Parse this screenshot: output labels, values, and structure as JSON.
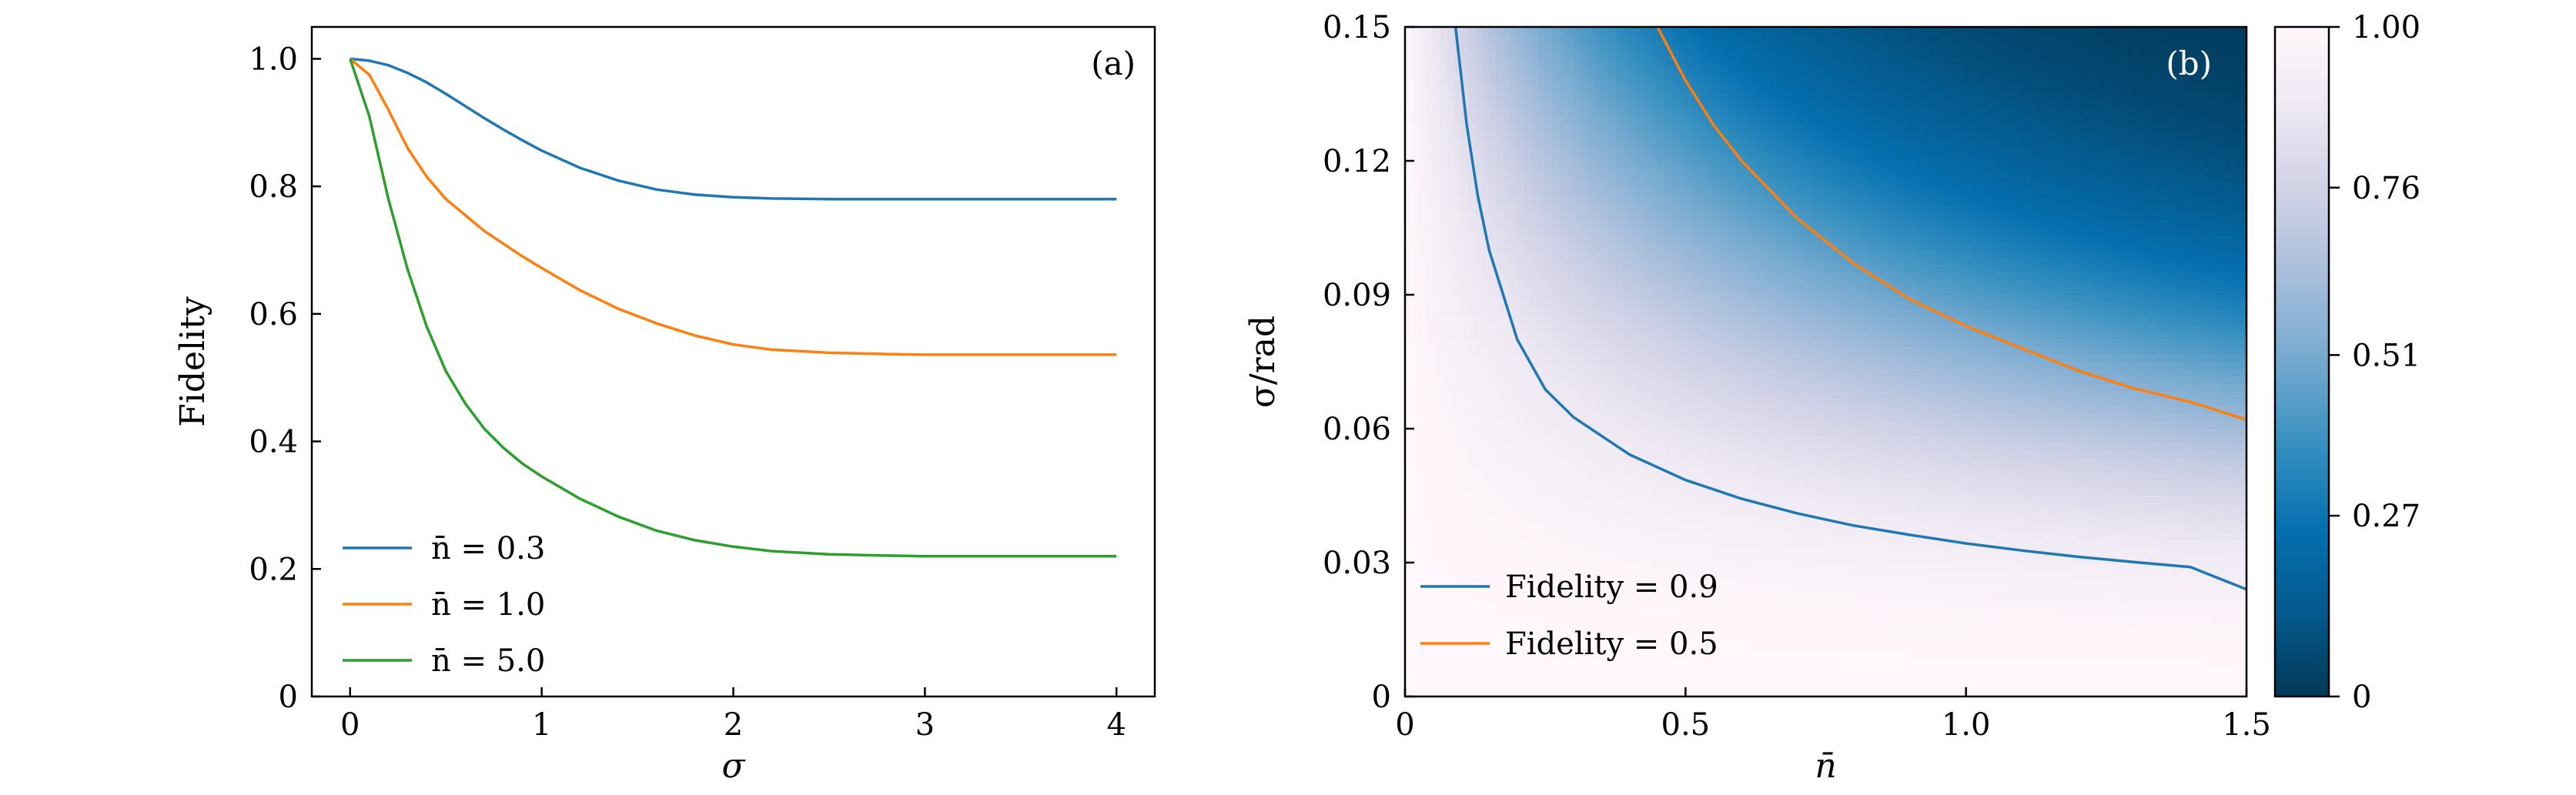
{
  "figure": {
    "panel_a": {
      "tag": "(a)",
      "xlabel": "σ",
      "ylabel": "Fidelity"
    },
    "panel_b": {
      "tag": "(b)",
      "xlabel": "n̄",
      "ylabel": "σ/rad"
    }
  },
  "chart_data": [
    {
      "type": "line",
      "panel": "a",
      "title": "",
      "xlabel": "σ",
      "ylabel": "Fidelity",
      "xlim": [
        -0.2,
        4.2
      ],
      "ylim": [
        0,
        1.05
      ],
      "xticks": [
        "0",
        "1",
        "2",
        "3",
        "4"
      ],
      "xtick_values": [
        0,
        1,
        2,
        3,
        4
      ],
      "yticks": [
        "0",
        "0.2",
        "0.4",
        "0.6",
        "0.8",
        "1.0"
      ],
      "ytick_values": [
        0,
        0.2,
        0.4,
        0.6,
        0.8,
        1.0
      ],
      "grid": false,
      "legend_position": "bottom-left",
      "x": [
        0,
        0.1,
        0.2,
        0.3,
        0.4,
        0.5,
        0.6,
        0.7,
        0.8,
        0.9,
        1.0,
        1.2,
        1.4,
        1.6,
        1.8,
        2.0,
        2.2,
        2.5,
        2.8,
        3.0,
        3.2,
        3.5,
        4.0
      ],
      "series": [
        {
          "name": "n̄ = 0.3",
          "color": "#1f77b4",
          "values": [
            1.0,
            0.997,
            0.99,
            0.978,
            0.963,
            0.945,
            0.926,
            0.907,
            0.889,
            0.872,
            0.856,
            0.829,
            0.809,
            0.795,
            0.787,
            0.783,
            0.781,
            0.78,
            0.78,
            0.78,
            0.78,
            0.78,
            0.78
          ]
        },
        {
          "name": "n̄ = 1.0",
          "color": "#ff7f0e",
          "values": [
            1.0,
            0.975,
            0.92,
            0.86,
            0.815,
            0.78,
            0.755,
            0.73,
            0.71,
            0.69,
            0.672,
            0.637,
            0.608,
            0.585,
            0.566,
            0.552,
            0.544,
            0.539,
            0.537,
            0.536,
            0.536,
            0.536,
            0.536
          ]
        },
        {
          "name": "n̄ = 5.0",
          "color": "#2ca02c",
          "values": [
            1.0,
            0.91,
            0.78,
            0.67,
            0.58,
            0.51,
            0.46,
            0.42,
            0.39,
            0.365,
            0.345,
            0.31,
            0.282,
            0.26,
            0.245,
            0.235,
            0.228,
            0.223,
            0.221,
            0.22,
            0.22,
            0.22,
            0.22
          ]
        }
      ]
    },
    {
      "type": "heatmap",
      "panel": "b",
      "title": "",
      "xlabel": "n̄",
      "ylabel": "σ/rad",
      "xlim": [
        0,
        1.5
      ],
      "ylim": [
        0,
        0.15
      ],
      "xticks": [
        "0",
        "0.5",
        "1.0",
        "1.5"
      ],
      "xtick_values": [
        0,
        0.5,
        1.0,
        1.5
      ],
      "yticks": [
        "0",
        "0.03",
        "0.06",
        "0.09",
        "0.12",
        "0.15"
      ],
      "ytick_values": [
        0,
        0.03,
        0.06,
        0.09,
        0.12,
        0.15
      ],
      "colorbar": {
        "range": [
          0,
          1.0
        ],
        "ticks": [
          "0",
          "0.27",
          "0.51",
          "0.76",
          "1.00"
        ],
        "tick_values": [
          0,
          0.27,
          0.51,
          0.76,
          1.0
        ],
        "colormap": "PuBu_r",
        "stops": [
          "#023858",
          "#045a8d",
          "#0570b0",
          "#3690c0",
          "#74a9cf",
          "#a6bddb",
          "#d0d1e6",
          "#ece7f2",
          "#fff7fb"
        ]
      },
      "contours": [
        {
          "name": "Fidelity = 0.9",
          "color": "#1f77b4",
          "level": 0.9,
          "x": [
            0.09,
            0.11,
            0.13,
            0.15,
            0.2,
            0.25,
            0.3,
            0.4,
            0.5,
            0.6,
            0.7,
            0.8,
            0.9,
            1.0,
            1.1,
            1.2,
            1.3,
            1.4,
            1.5
          ],
          "y": [
            0.15,
            0.128,
            0.112,
            0.1,
            0.08,
            0.0688,
            0.0626,
            0.0542,
            0.0485,
            0.0443,
            0.041,
            0.0383,
            0.0362,
            0.0343,
            0.0327,
            0.0313,
            0.0301,
            0.029,
            0.024
          ]
        },
        {
          "name": "Fidelity = 0.5",
          "color": "#ff7f0e",
          "level": 0.5,
          "x": [
            0.45,
            0.5,
            0.55,
            0.6,
            0.7,
            0.8,
            0.9,
            1.0,
            1.1,
            1.2,
            1.3,
            1.4,
            1.5
          ],
          "y": [
            0.15,
            0.138,
            0.128,
            0.12,
            0.107,
            0.097,
            0.089,
            0.083,
            0.078,
            0.073,
            0.069,
            0.066,
            0.062
          ]
        }
      ],
      "legend_position": "bottom-left"
    }
  ]
}
